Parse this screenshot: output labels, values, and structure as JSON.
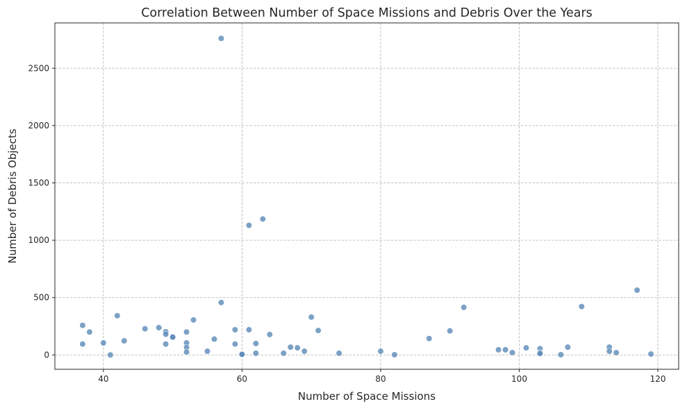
{
  "chart_data": {
    "type": "scatter",
    "title": "Correlation Between Number of Space Missions and Debris Over the Years",
    "xlabel": "Number of Space Missions",
    "ylabel": "Number of Debris Objects",
    "xlim": [
      33,
      123
    ],
    "ylim": [
      -125,
      2895
    ],
    "xticks": [
      40,
      60,
      80,
      100,
      120
    ],
    "yticks": [
      0,
      500,
      1000,
      1500,
      2000,
      2500
    ],
    "grid": true,
    "grid_style": "dashed",
    "point_color": "#5b89b8",
    "points": [
      {
        "x": 37,
        "y": 258
      },
      {
        "x": 37,
        "y": 95
      },
      {
        "x": 38,
        "y": 200
      },
      {
        "x": 40,
        "y": 105
      },
      {
        "x": 41,
        "y": 0
      },
      {
        "x": 42,
        "y": 342
      },
      {
        "x": 43,
        "y": 123
      },
      {
        "x": 46,
        "y": 228
      },
      {
        "x": 48,
        "y": 238
      },
      {
        "x": 49,
        "y": 202
      },
      {
        "x": 49,
        "y": 180
      },
      {
        "x": 49,
        "y": 95
      },
      {
        "x": 50,
        "y": 160
      },
      {
        "x": 50,
        "y": 155
      },
      {
        "x": 52,
        "y": 200
      },
      {
        "x": 52,
        "y": 105
      },
      {
        "x": 52,
        "y": 65
      },
      {
        "x": 52,
        "y": 25
      },
      {
        "x": 53,
        "y": 305
      },
      {
        "x": 55,
        "y": 32
      },
      {
        "x": 56,
        "y": 138
      },
      {
        "x": 57,
        "y": 2760
      },
      {
        "x": 57,
        "y": 457
      },
      {
        "x": 59,
        "y": 220
      },
      {
        "x": 59,
        "y": 95
      },
      {
        "x": 60,
        "y": 8
      },
      {
        "x": 60,
        "y": 5
      },
      {
        "x": 61,
        "y": 1130
      },
      {
        "x": 61,
        "y": 220
      },
      {
        "x": 62,
        "y": 100
      },
      {
        "x": 62,
        "y": 15
      },
      {
        "x": 63,
        "y": 1185
      },
      {
        "x": 64,
        "y": 178
      },
      {
        "x": 66,
        "y": 15
      },
      {
        "x": 67,
        "y": 68
      },
      {
        "x": 68,
        "y": 62
      },
      {
        "x": 69,
        "y": 32
      },
      {
        "x": 70,
        "y": 330
      },
      {
        "x": 71,
        "y": 213
      },
      {
        "x": 74,
        "y": 15
      },
      {
        "x": 80,
        "y": 32
      },
      {
        "x": 82,
        "y": 2
      },
      {
        "x": 87,
        "y": 143
      },
      {
        "x": 90,
        "y": 210
      },
      {
        "x": 92,
        "y": 415
      },
      {
        "x": 97,
        "y": 45
      },
      {
        "x": 98,
        "y": 45
      },
      {
        "x": 99,
        "y": 20
      },
      {
        "x": 101,
        "y": 62
      },
      {
        "x": 103,
        "y": 55
      },
      {
        "x": 103,
        "y": 20
      },
      {
        "x": 103,
        "y": 12
      },
      {
        "x": 106,
        "y": 2
      },
      {
        "x": 107,
        "y": 68
      },
      {
        "x": 109,
        "y": 422
      },
      {
        "x": 113,
        "y": 68
      },
      {
        "x": 113,
        "y": 32
      },
      {
        "x": 114,
        "y": 20
      },
      {
        "x": 117,
        "y": 565
      },
      {
        "x": 119,
        "y": 8
      }
    ]
  }
}
